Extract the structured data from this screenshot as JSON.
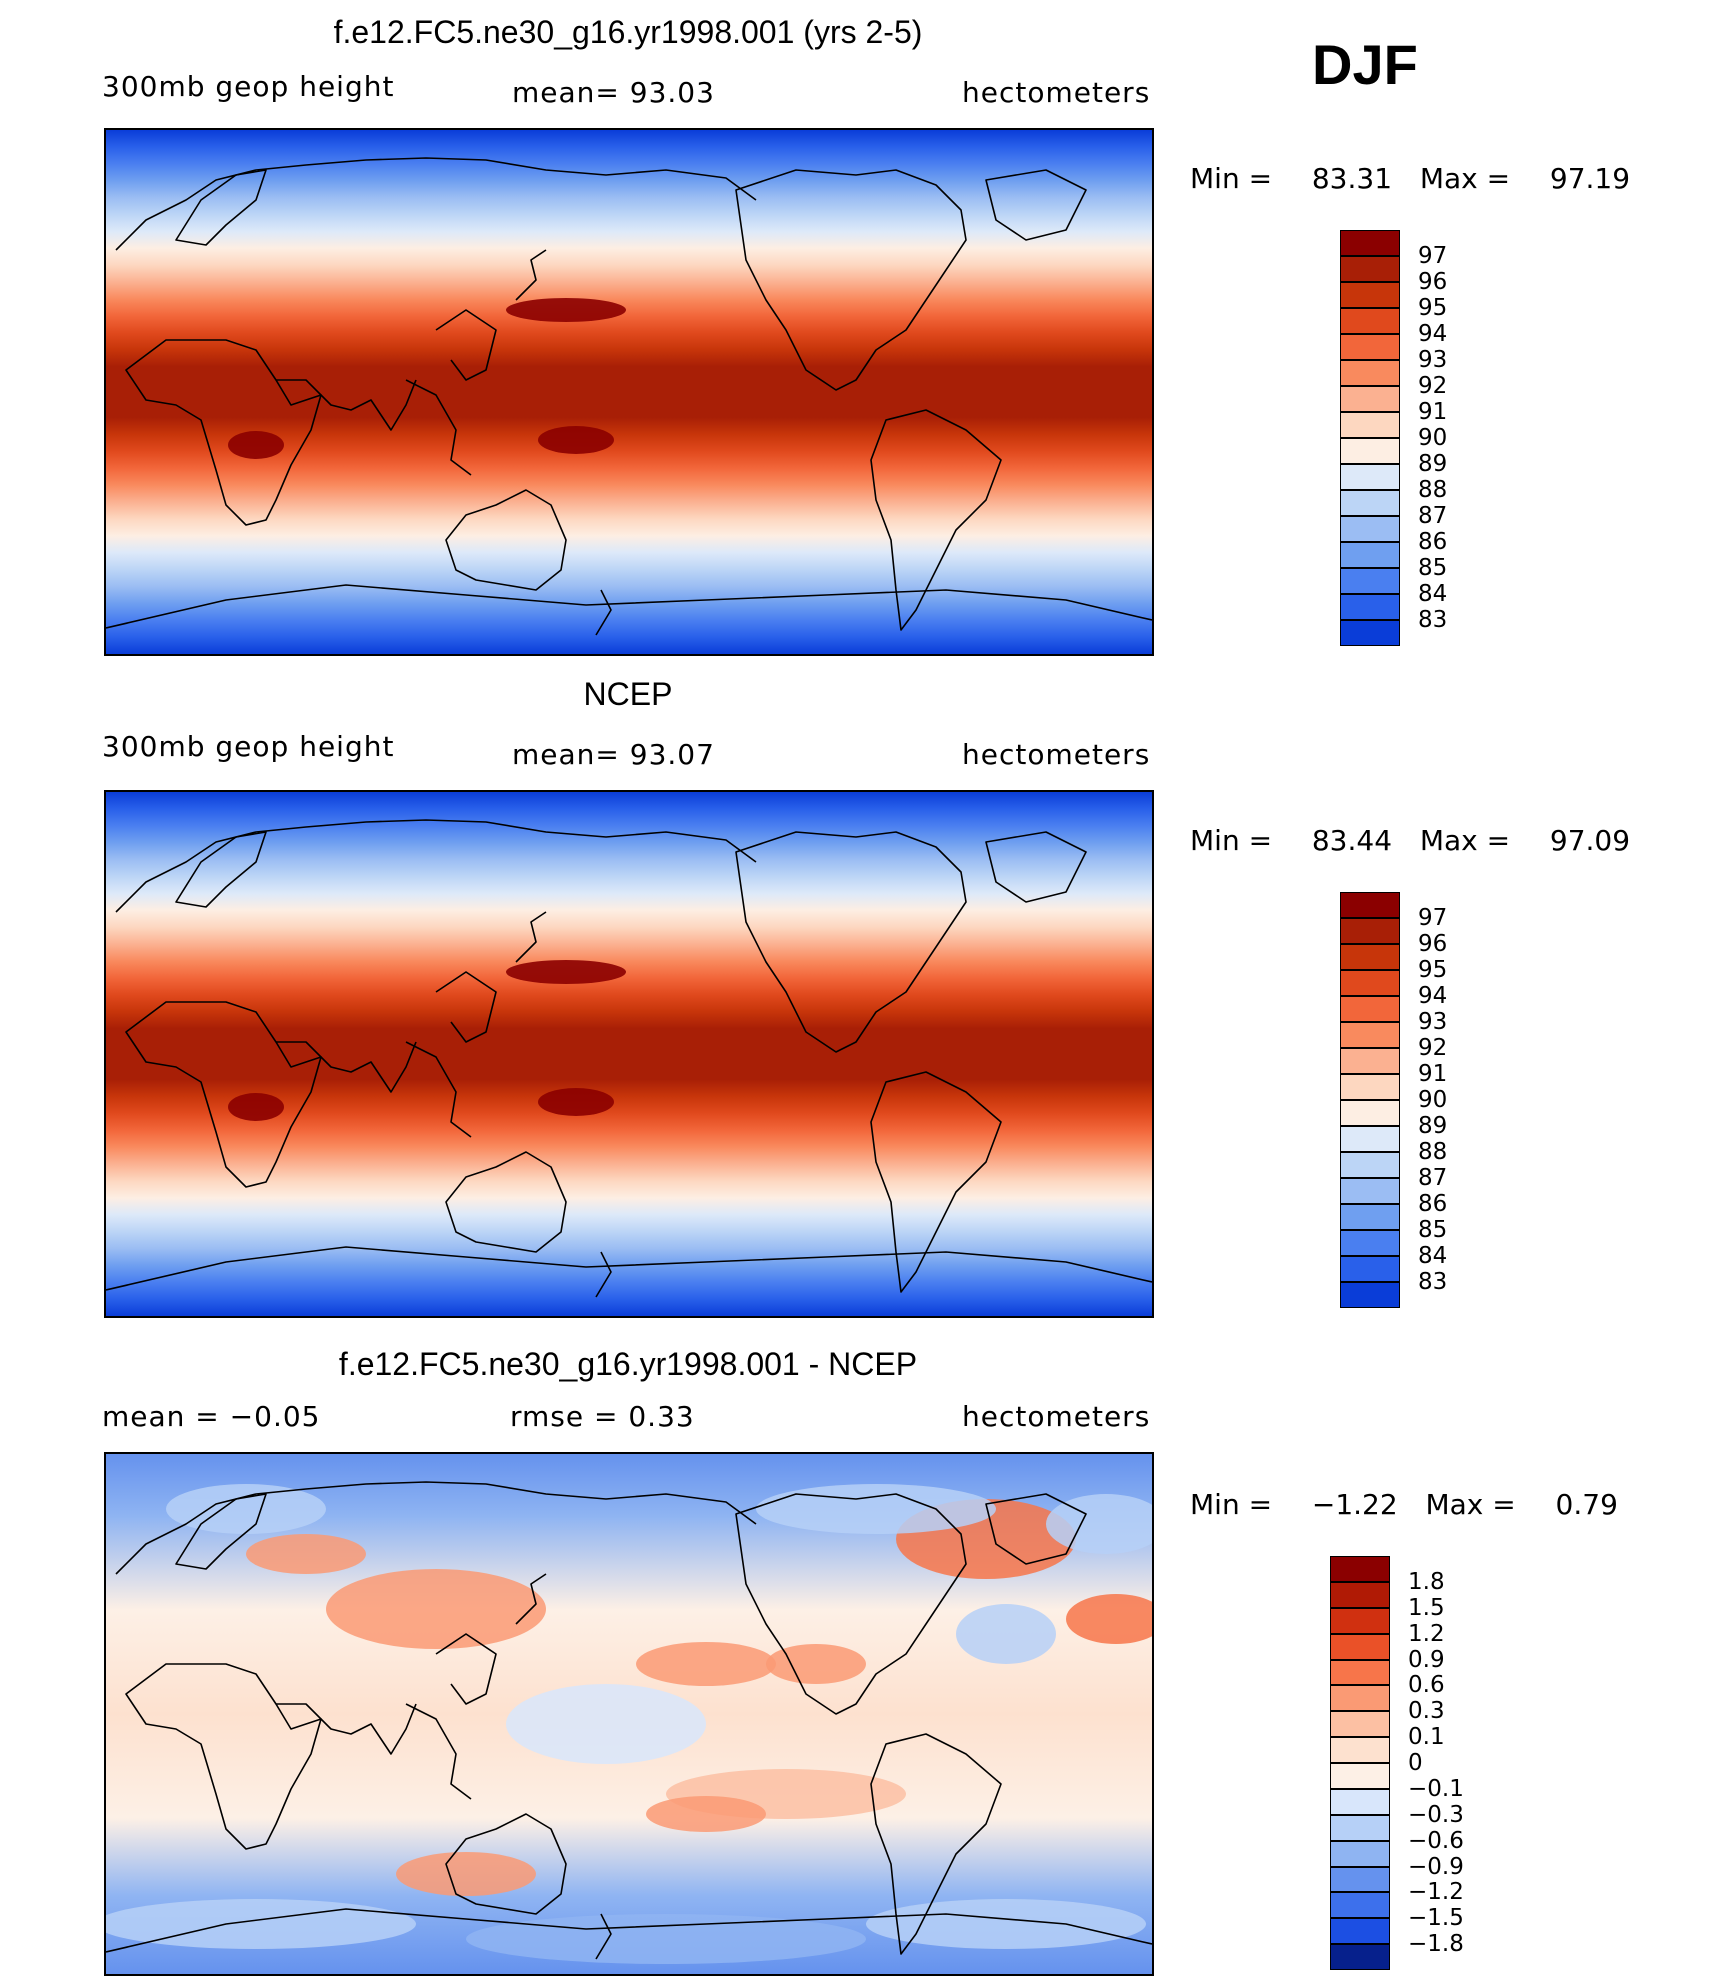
{
  "season": "DJF",
  "panels": [
    {
      "title": "f.e12.FC5.ne30_g16.yr1998.001 (yrs 2-5)",
      "left": "300mb  geop  height",
      "center": "mean=   93.03",
      "right": "hectometers",
      "min_label": "Min  =",
      "min_value": "83.31",
      "max_label": "Max  =",
      "max_value": "97.19",
      "field_type": "absolute",
      "colorbar": {
        "labels": [
          "97",
          "96",
          "95",
          "94",
          "93",
          "92",
          "91",
          "90",
          "89",
          "88",
          "87",
          "86",
          "85",
          "84",
          "83"
        ],
        "colors": [
          "#8b0000",
          "#a81f06",
          "#c7350a",
          "#e0491d",
          "#f2663a",
          "#f98a5e",
          "#fbb191",
          "#fdd7c0",
          "#fdeee3",
          "#dde9f9",
          "#bcd5f6",
          "#9bbdf3",
          "#6f9ff0",
          "#4a7ff0",
          "#2960ea",
          "#0a3dd8"
        ]
      }
    },
    {
      "title": "NCEP",
      "left": "300mb  geop  height",
      "center": "mean=   93.07",
      "right": "hectometers",
      "min_label": "Min  =",
      "min_value": "83.44",
      "max_label": "Max  =",
      "max_value": "97.09",
      "field_type": "absolute",
      "colorbar": {
        "labels": [
          "97",
          "96",
          "95",
          "94",
          "93",
          "92",
          "91",
          "90",
          "89",
          "88",
          "87",
          "86",
          "85",
          "84",
          "83"
        ],
        "colors": [
          "#8b0000",
          "#a81f06",
          "#c7350a",
          "#e0491d",
          "#f2663a",
          "#f98a5e",
          "#fbb191",
          "#fdd7c0",
          "#fdeee3",
          "#dde9f9",
          "#bcd5f6",
          "#9bbdf3",
          "#6f9ff0",
          "#4a7ff0",
          "#2960ea",
          "#0a3dd8"
        ]
      }
    },
    {
      "title": "f.e12.FC5.ne30_g16.yr1998.001 - NCEP",
      "left": "mean  =    −0.05",
      "center": "rmse  =     0.33",
      "right": "hectometers",
      "min_label": "Min  =",
      "min_value": "−1.22",
      "max_label": "Max  =",
      "max_value": "0.79",
      "field_type": "difference",
      "colorbar": {
        "labels": [
          "1.8",
          "1.5",
          "1.2",
          "0.9",
          "0.6",
          "0.3",
          "0.1",
          "0",
          "−0.1",
          "−0.3",
          "−0.6",
          "−0.9",
          "−1.2",
          "−1.5",
          "−1.8"
        ],
        "colors": [
          "#8b0000",
          "#b01a05",
          "#d03010",
          "#ea5128",
          "#f7754a",
          "#fa9a74",
          "#fcc0a3",
          "#fde1cf",
          "#fdf0e6",
          "#d8e6fb",
          "#b6d0f7",
          "#8fb4f2",
          "#6592ee",
          "#3d70ec",
          "#1c4fe3",
          "#06208c"
        ]
      }
    }
  ]
}
